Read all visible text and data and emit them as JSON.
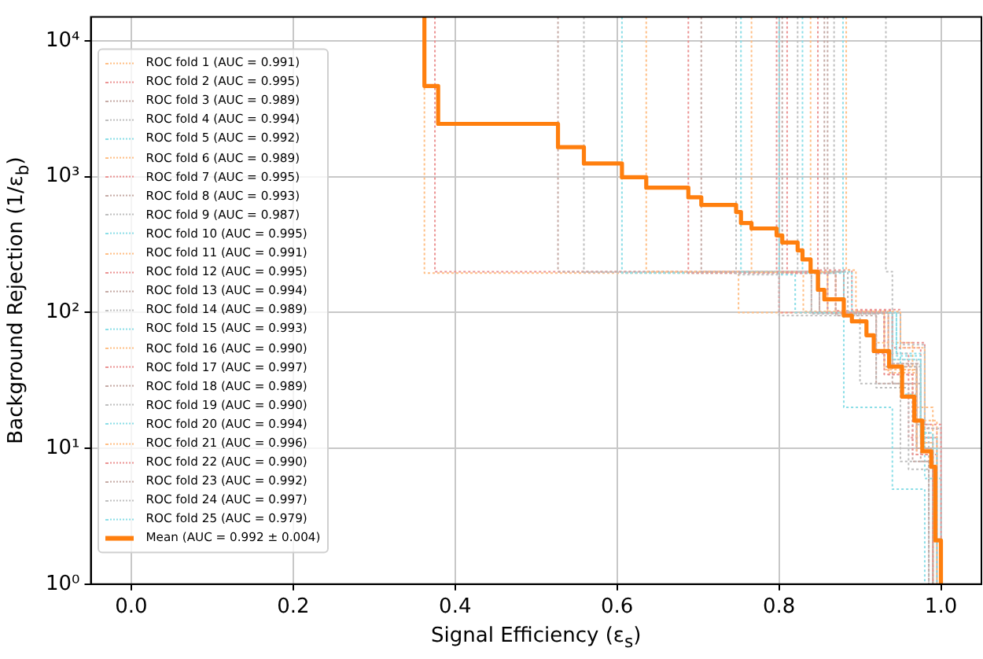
{
  "chart_data": {
    "type": "line",
    "xlabel": "Signal Efficiency (ε$_{s}$)",
    "ylabel": "Background Rejection (1/ε$_{b}$)",
    "xlim": [
      -0.05,
      1.05
    ],
    "xticks": [
      {
        "value": 0,
        "label": "0.0"
      },
      0.2,
      0.4,
      0.6,
      0.8,
      {
        "value": 1,
        "label": "1.0"
      }
    ],
    "ylim": [
      1,
      15000
    ],
    "yticks": [
      {
        "value": 1,
        "label": "10⁰"
      },
      {
        "value": 10,
        "label": "10¹"
      },
      {
        "value": 100,
        "label": "10²"
      },
      {
        "value": 1000,
        "label": "10³"
      },
      {
        "value": 10000,
        "label": "10⁴"
      }
    ],
    "log": "y",
    "grid": true,
    "legend": "left",
    "marker": "none",
    "series": [
      {
        "name": "ROC fold 1 (AUC = 0.991)",
        "color": "#ffbf86",
        "line_style": "dotted",
        "x": [
          0.362,
          0.362,
          0.75,
          0.75,
          0.93,
          0.93,
          0.97,
          0.97,
          0.99,
          0.99
        ],
        "values": [
          15000,
          195,
          195,
          100,
          100,
          40,
          40,
          10,
          10,
          1
        ]
      },
      {
        "name": "ROC fold 2 (AUC = 0.995)",
        "color": "#eb9393",
        "line_style": "dotted",
        "x": [
          0.375,
          0.375,
          0.8,
          0.8,
          0.92,
          0.92,
          0.96,
          0.96,
          0.995,
          0.995
        ],
        "values": [
          15000,
          200,
          200,
          100,
          100,
          50,
          50,
          12,
          12,
          1
        ]
      },
      {
        "name": "ROC fold 3 (AUC = 0.989)",
        "color": "#c5aaa5",
        "line_style": "dotted",
        "x": [
          0.527,
          0.527,
          0.85,
          0.85,
          0.94,
          0.94,
          0.975,
          0.975,
          0.99,
          0.99
        ],
        "values": [
          15000,
          200,
          200,
          100,
          100,
          30,
          30,
          8,
          8,
          1
        ]
      },
      {
        "name": "ROC fold 4 (AUC = 0.994)",
        "color": "#bfbfbf",
        "line_style": "dotted",
        "x": [
          0.559,
          0.559,
          0.88,
          0.88,
          0.93,
          0.93,
          0.97,
          0.97,
          0.985,
          0.985
        ],
        "values": [
          15000,
          198,
          198,
          98,
          98,
          45,
          45,
          15,
          15,
          1
        ]
      },
      {
        "name": "ROC fold 5 (AUC = 0.992)",
        "color": "#8bdee7",
        "line_style": "dotted",
        "x": [
          0.606,
          0.606,
          0.86,
          0.86,
          0.95,
          0.95,
          0.98,
          0.98,
          1.0,
          1.0
        ],
        "values": [
          15000,
          195,
          195,
          100,
          100,
          25,
          25,
          6,
          6,
          1
        ]
      },
      {
        "name": "ROC fold 6 (AUC = 0.989)",
        "color": "#ffbf86",
        "line_style": "dotted",
        "x": [
          0.636,
          0.636,
          0.83,
          0.83,
          0.92,
          0.92,
          0.965,
          0.965,
          0.99,
          0.99
        ],
        "values": [
          15000,
          200,
          200,
          102,
          102,
          60,
          60,
          20,
          20,
          1
        ]
      },
      {
        "name": "ROC fold 7 (AUC = 0.995)",
        "color": "#eb9393",
        "line_style": "dotted",
        "x": [
          0.688,
          0.688,
          0.87,
          0.87,
          0.935,
          0.935,
          0.97,
          0.97,
          0.995,
          0.995
        ],
        "values": [
          15000,
          195,
          195,
          100,
          100,
          35,
          35,
          9,
          9,
          1
        ]
      },
      {
        "name": "ROC fold 8 (AUC = 0.993)",
        "color": "#c5aaa5",
        "line_style": "dotted",
        "x": [
          0.704,
          0.704,
          0.84,
          0.84,
          0.94,
          0.94,
          0.975,
          0.975,
          0.99,
          0.99
        ],
        "values": [
          15000,
          200,
          200,
          100,
          100,
          42,
          42,
          12,
          12,
          1
        ]
      },
      {
        "name": "ROC fold 9 (AUC = 0.987)",
        "color": "#bfbfbf",
        "line_style": "dotted",
        "x": [
          0.747,
          0.747,
          0.8,
          0.8,
          0.9,
          0.9,
          0.95,
          0.95,
          0.985,
          0.985
        ],
        "values": [
          15000,
          190,
          190,
          95,
          95,
          30,
          30,
          8,
          8,
          1
        ]
      },
      {
        "name": "ROC fold 10 (AUC = 0.995)",
        "color": "#8bdee7",
        "line_style": "dotted",
        "x": [
          0.753,
          0.753,
          0.88,
          0.88,
          0.945,
          0.945,
          0.98,
          0.98,
          0.995,
          0.995
        ],
        "values": [
          15000,
          200,
          200,
          100,
          100,
          50,
          50,
          10,
          10,
          1
        ]
      },
      {
        "name": "ROC fold 11 (AUC = 0.991)",
        "color": "#ffbf86",
        "line_style": "dotted",
        "x": [
          0.766,
          0.766,
          0.86,
          0.86,
          0.93,
          0.93,
          0.97,
          0.97,
          0.99,
          0.99
        ],
        "values": [
          15000,
          198,
          198,
          100,
          100,
          38,
          38,
          11,
          11,
          1
        ]
      },
      {
        "name": "ROC fold 12 (AUC = 0.995)",
        "color": "#eb9393",
        "line_style": "dotted",
        "x": [
          0.797,
          0.797,
          0.87,
          0.87,
          0.94,
          0.94,
          0.975,
          0.975,
          0.995,
          0.995
        ],
        "values": [
          15000,
          200,
          200,
          103,
          103,
          55,
          55,
          14,
          14,
          1
        ]
      },
      {
        "name": "ROC fold 13 (AUC = 0.994)",
        "color": "#c5aaa5",
        "line_style": "dotted",
        "x": [
          0.804,
          0.804,
          0.85,
          0.85,
          0.93,
          0.93,
          0.97,
          0.97,
          0.99,
          0.99
        ],
        "values": [
          15000,
          195,
          195,
          100,
          100,
          40,
          40,
          10,
          10,
          1
        ]
      },
      {
        "name": "ROC fold 14 (AUC = 0.989)",
        "color": "#bfbfbf",
        "line_style": "dotted",
        "x": [
          0.823,
          0.823,
          0.84,
          0.84,
          0.92,
          0.92,
          0.96,
          0.96,
          0.985,
          0.985
        ],
        "values": [
          15000,
          200,
          200,
          98,
          98,
          28,
          28,
          7,
          7,
          1
        ]
      },
      {
        "name": "ROC fold 15 (AUC = 0.993)",
        "color": "#8bdee7",
        "line_style": "dotted",
        "x": [
          0.829,
          0.829,
          0.88,
          0.88,
          0.94,
          0.94,
          0.975,
          0.975,
          0.99,
          0.99
        ],
        "values": [
          15000,
          195,
          195,
          100,
          100,
          45,
          45,
          13,
          13,
          1
        ]
      },
      {
        "name": "ROC fold 16 (AUC = 0.990)",
        "color": "#ffbf86",
        "line_style": "dotted",
        "x": [
          0.839,
          0.839,
          0.87,
          0.87,
          0.935,
          0.935,
          0.97,
          0.97,
          0.99,
          0.99
        ],
        "values": [
          15000,
          200,
          200,
          100,
          100,
          36,
          36,
          9,
          9,
          1
        ]
      },
      {
        "name": "ROC fold 17 (AUC = 0.997)",
        "color": "#eb9393",
        "line_style": "dotted",
        "x": [
          0.848,
          0.848,
          0.89,
          0.89,
          0.95,
          0.95,
          0.98,
          0.98,
          1.0,
          1.0
        ],
        "values": [
          15000,
          205,
          205,
          105,
          105,
          60,
          60,
          15,
          15,
          1
        ]
      },
      {
        "name": "ROC fold 18 (AUC = 0.989)",
        "color": "#c5aaa5",
        "line_style": "dotted",
        "x": [
          0.856,
          0.856,
          0.87,
          0.87,
          0.92,
          0.92,
          0.965,
          0.965,
          0.985,
          0.985
        ],
        "values": [
          15000,
          195,
          195,
          95,
          95,
          30,
          30,
          8,
          8,
          1
        ]
      },
      {
        "name": "ROC fold 19 (AUC = 0.990)",
        "color": "#bfbfbf",
        "line_style": "dotted",
        "x": [
          0.868,
          0.868,
          0.885,
          0.885,
          0.94,
          0.94,
          0.975,
          0.975,
          0.99,
          0.99
        ],
        "values": [
          15000,
          200,
          200,
          100,
          100,
          40,
          40,
          11,
          11,
          1
        ]
      },
      {
        "name": "ROC fold 20 (AUC = 0.994)",
        "color": "#8bdee7",
        "line_style": "dotted",
        "x": [
          0.879,
          0.879,
          0.89,
          0.89,
          0.945,
          0.945,
          0.975,
          0.975,
          0.995,
          0.995
        ],
        "values": [
          15000,
          200,
          200,
          100,
          100,
          48,
          48,
          12,
          12,
          1
        ]
      },
      {
        "name": "ROC fold 21 (AUC = 0.996)",
        "color": "#ffbf86",
        "line_style": "dotted",
        "x": [
          0.883,
          0.883,
          0.895,
          0.895,
          0.95,
          0.95,
          0.98,
          0.98,
          0.995,
          0.995
        ],
        "values": [
          15000,
          205,
          205,
          102,
          102,
          55,
          55,
          16,
          16,
          1
        ]
      },
      {
        "name": "ROC fold 22 (AUC = 0.990)",
        "color": "#eb9393",
        "line_style": "dotted",
        "x": [
          0.81,
          0.81,
          0.86,
          0.86,
          0.93,
          0.93,
          0.965,
          0.965,
          0.99,
          0.99
        ],
        "values": [
          15000,
          195,
          195,
          100,
          100,
          35,
          35,
          9,
          9,
          1
        ]
      },
      {
        "name": "ROC fold 23 (AUC = 0.992)",
        "color": "#c5aaa5",
        "line_style": "dotted",
        "x": [
          0.86,
          0.86,
          0.88,
          0.88,
          0.935,
          0.935,
          0.97,
          0.97,
          0.99,
          0.99
        ],
        "values": [
          15000,
          200,
          200,
          100,
          100,
          42,
          42,
          10,
          10,
          1
        ]
      },
      {
        "name": "ROC fold 24 (AUC = 0.997)",
        "color": "#bfbfbf",
        "line_style": "dotted",
        "x": [
          0.932,
          0.932,
          0.94,
          0.94,
          0.95,
          0.95,
          0.98,
          0.98,
          1.0,
          1.0
        ],
        "values": [
          15000,
          200,
          200,
          100,
          100,
          58,
          58,
          14,
          14,
          1
        ]
      },
      {
        "name": "ROC fold 25 (AUC = 0.979)",
        "color": "#8bdee7",
        "line_style": "dotted",
        "x": [
          0.8,
          0.8,
          0.82,
          0.82,
          0.88,
          0.88,
          0.94,
          0.94,
          0.98,
          0.98
        ],
        "values": [
          15000,
          190,
          190,
          100,
          100,
          20,
          20,
          5,
          5,
          1
        ]
      },
      {
        "name": "Mean (AUC = 0.992 ± 0.004)",
        "color": "#ff7f0e",
        "line_style": "solid",
        "x": [
          0.362,
          0.362,
          0.379,
          0.379,
          0.527,
          0.527,
          0.559,
          0.559,
          0.606,
          0.606,
          0.636,
          0.636,
          0.688,
          0.688,
          0.704,
          0.704,
          0.747,
          0.747,
          0.753,
          0.753,
          0.766,
          0.766,
          0.797,
          0.797,
          0.804,
          0.804,
          0.823,
          0.823,
          0.829,
          0.829,
          0.839,
          0.839,
          0.848,
          0.848,
          0.856,
          0.856,
          0.88,
          0.88,
          0.89,
          0.89,
          0.908,
          0.908,
          0.917,
          0.917,
          0.936,
          0.936,
          0.952,
          0.952,
          0.967,
          0.967,
          0.977,
          0.977,
          0.988,
          0.988,
          0.993,
          0.993,
          1.0,
          1.0
        ],
        "values": [
          15000,
          4660,
          4660,
          2450,
          2450,
          1650,
          1650,
          1250,
          1250,
          990,
          990,
          830,
          830,
          705,
          705,
          620,
          620,
          550,
          550,
          456,
          456,
          416,
          416,
          370,
          370,
          328,
          328,
          287,
          287,
          246,
          246,
          200,
          200,
          147,
          147,
          125,
          125,
          95,
          95,
          86,
          86,
          68,
          68,
          52,
          52,
          40,
          40,
          24,
          24,
          16,
          16,
          9.5,
          9.5,
          7.3,
          7.3,
          2.1,
          2.1,
          1
        ]
      }
    ]
  }
}
